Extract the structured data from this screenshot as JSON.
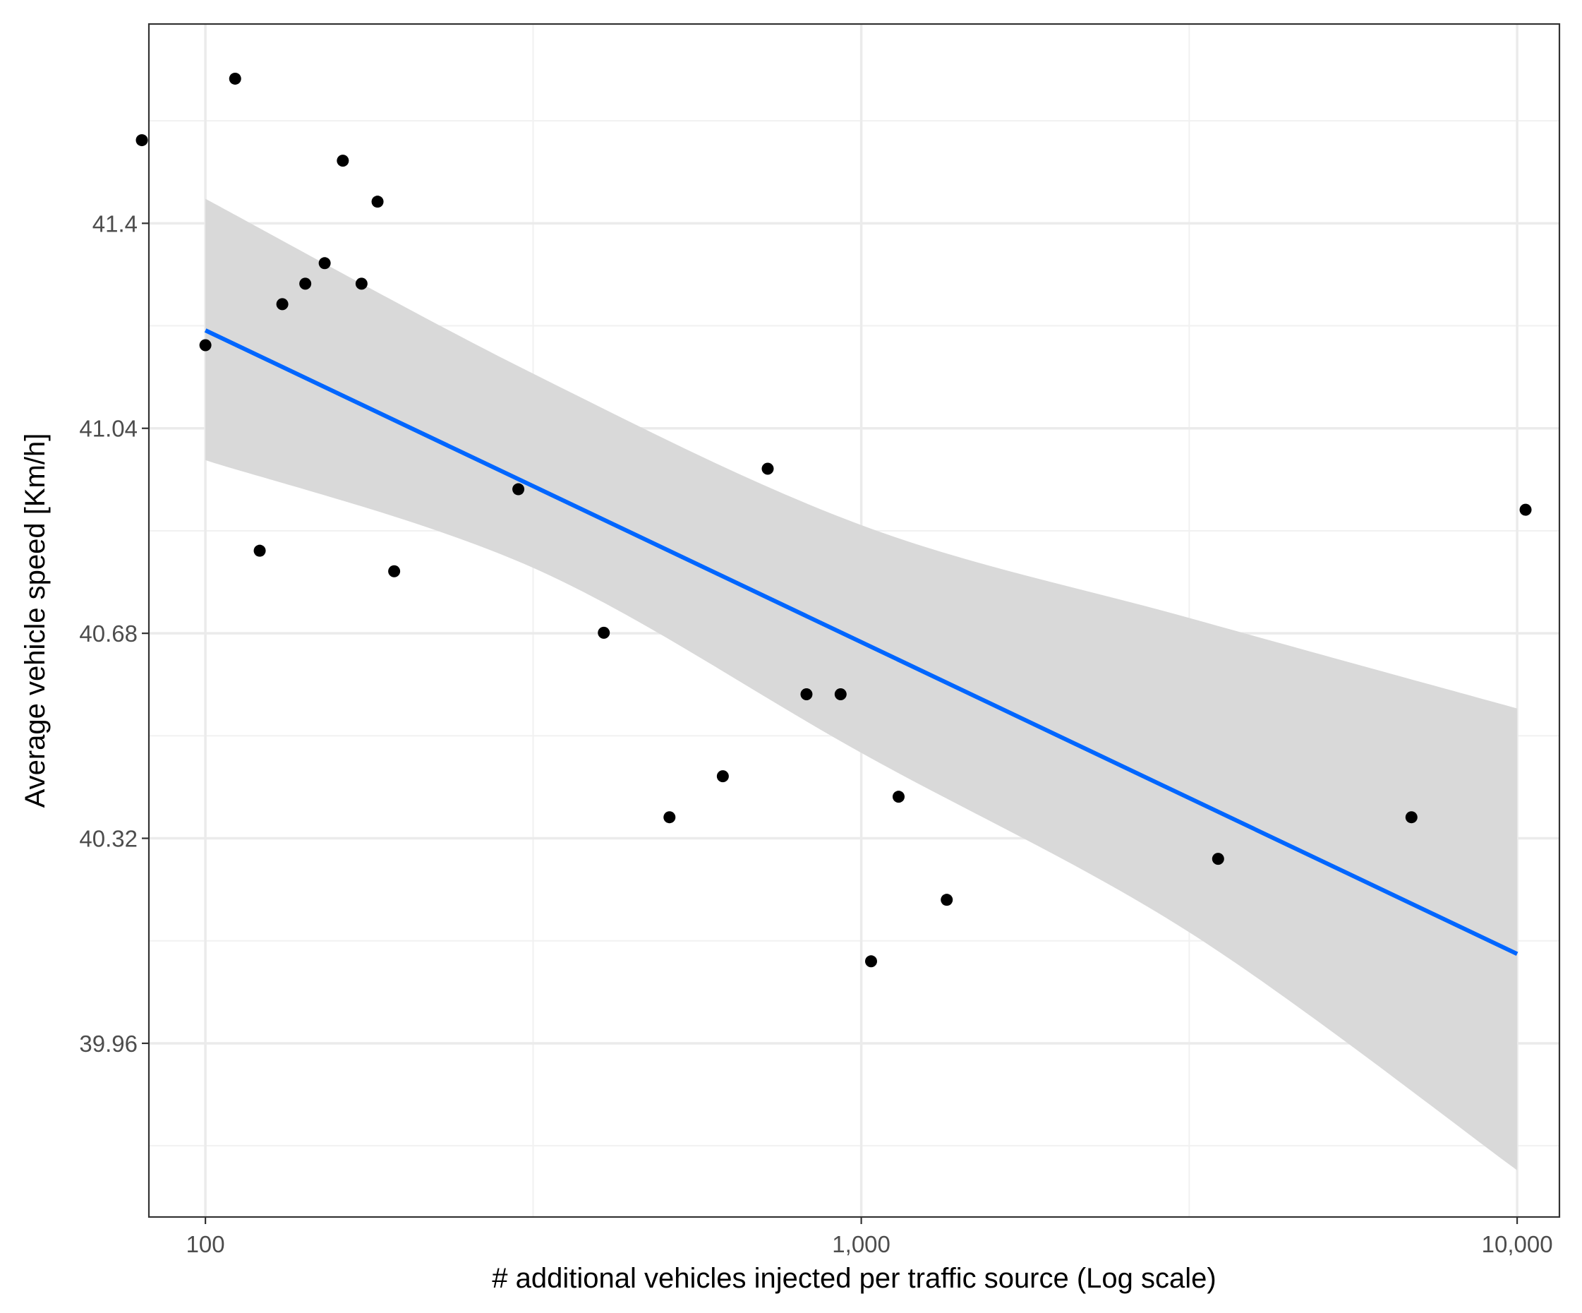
{
  "chart_data": {
    "type": "scatter",
    "title": "",
    "xlabel": "# additional vehicles injected per traffic source (Log scale)",
    "ylabel": "Average vehicle speed [Km/h]",
    "x_scale": "log10",
    "xlim": [
      82,
      11600
    ],
    "ylim": [
      39.655,
      41.75
    ],
    "grid": true,
    "legend": "none",
    "x_ticks": [
      {
        "value": 100,
        "label": "100"
      },
      {
        "value": 1000,
        "label": "1,000"
      },
      {
        "value": 10000,
        "label": "10,000"
      }
    ],
    "x_minor_ticks": [
      316,
      3162
    ],
    "y_ticks": [
      {
        "value": 39.96,
        "label": "39.96"
      },
      {
        "value": 40.32,
        "label": "40.32"
      },
      {
        "value": 40.68,
        "label": "40.68"
      },
      {
        "value": 41.04,
        "label": "41.04"
      },
      {
        "value": 41.4,
        "label": "41.4"
      }
    ],
    "y_minor_ticks": [
      39.78,
      40.14,
      40.5,
      40.86,
      41.22,
      41.58
    ],
    "series": [
      {
        "name": "observations",
        "kind": "points",
        "color": "#000000",
        "points": [
          {
            "x": 80,
            "y": 41.546
          },
          {
            "x": 111,
            "y": 41.654
          },
          {
            "x": 100,
            "y": 41.186
          },
          {
            "x": 121,
            "y": 40.825
          },
          {
            "x": 131,
            "y": 41.258
          },
          {
            "x": 142,
            "y": 41.294
          },
          {
            "x": 152,
            "y": 41.33
          },
          {
            "x": 162,
            "y": 41.51
          },
          {
            "x": 173,
            "y": 41.294
          },
          {
            "x": 183,
            "y": 41.438
          },
          {
            "x": 194,
            "y": 40.789
          },
          {
            "x": 300,
            "y": 40.933
          },
          {
            "x": 405,
            "y": 40.681
          },
          {
            "x": 510,
            "y": 40.357
          },
          {
            "x": 615,
            "y": 40.429
          },
          {
            "x": 720,
            "y": 40.969
          },
          {
            "x": 825,
            "y": 40.573
          },
          {
            "x": 930,
            "y": 40.573
          },
          {
            "x": 1035,
            "y": 40.104
          },
          {
            "x": 1140,
            "y": 40.393
          },
          {
            "x": 1350,
            "y": 40.212
          },
          {
            "x": 3500,
            "y": 40.284
          },
          {
            "x": 6900,
            "y": 40.357
          },
          {
            "x": 10300,
            "y": 40.897
          }
        ]
      },
      {
        "name": "linear fit",
        "kind": "line",
        "color": "#0066ff",
        "points": [
          {
            "x": 100,
            "y": 41.212
          },
          {
            "x": 10000,
            "y": 40.117
          }
        ]
      },
      {
        "name": "95% confidence band",
        "kind": "band",
        "color": "#d9d9d9",
        "x": [
          100,
          316,
          1000,
          3162,
          10000
        ],
        "upper": [
          41.443,
          41.136,
          40.87,
          40.707,
          40.548
        ],
        "lower": [
          40.984,
          40.795,
          40.47,
          40.155,
          39.737
        ]
      }
    ]
  }
}
